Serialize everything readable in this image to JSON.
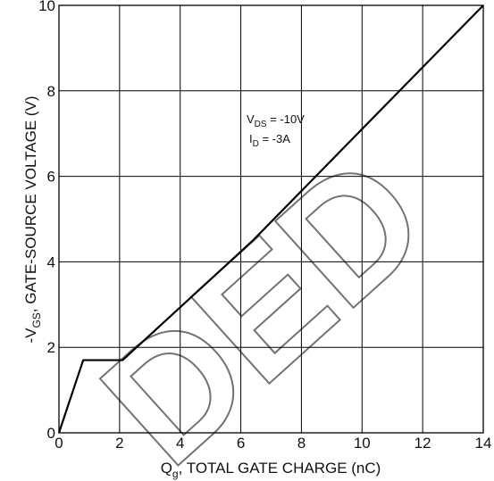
{
  "chart_data": {
    "type": "line",
    "xlabel_main": "Q",
    "xlabel_sub": "g",
    "xlabel_rest": ", TOTAL GATE CHARGE (nC)",
    "ylabel_main": "-V",
    "ylabel_sub": "GS",
    "ylabel_rest": ", GATE-SOURCE VOLTAGE (V)",
    "xlim": [
      0,
      14
    ],
    "ylim": [
      0,
      10
    ],
    "xticks": [
      0,
      2,
      4,
      6,
      8,
      10,
      12,
      14
    ],
    "yticks": [
      0,
      2,
      4,
      6,
      8,
      10
    ],
    "grid": true,
    "series": [
      {
        "x": [
          0,
          0.8,
          2.1,
          6.4,
          14
        ],
        "y": [
          0,
          1.7,
          1.7,
          4.5,
          10
        ]
      }
    ],
    "annotations": [
      {
        "main": "V",
        "sub": "DS",
        "rest": " = -10V"
      },
      {
        "main": "I",
        "sub": "D",
        "rest": " = -3A"
      }
    ]
  },
  "watermark": "DED",
  "colors": {
    "line": "#000000",
    "grid": "#000000",
    "background": "#ffffff"
  }
}
